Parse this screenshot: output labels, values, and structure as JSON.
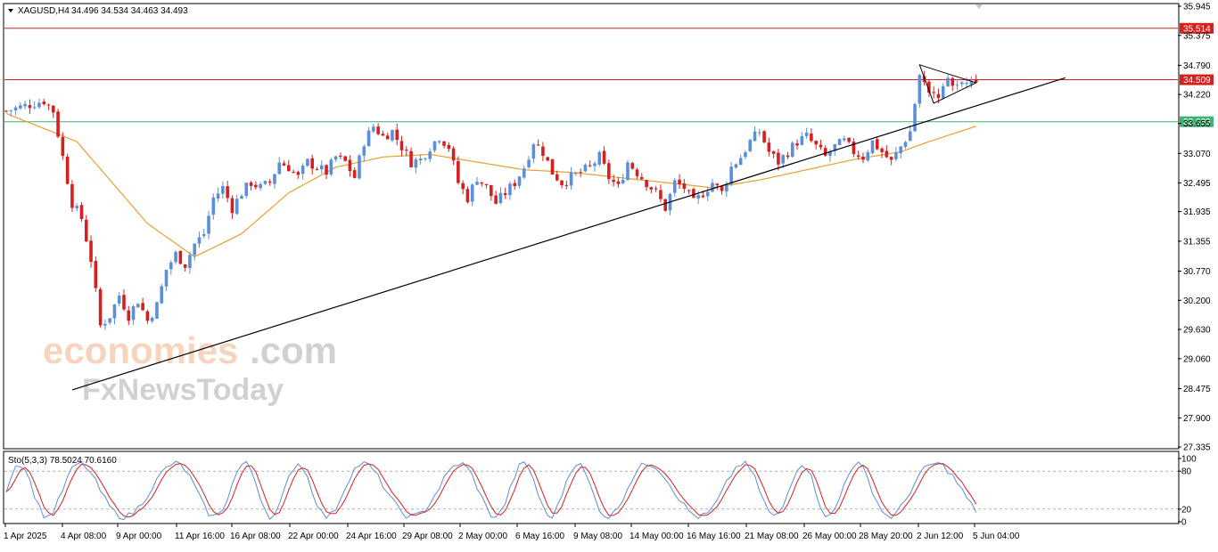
{
  "header": {
    "symbol": "XAGUSD,H4",
    "ohlc": "34.496 34.534 34.463 34.493"
  },
  "indicator": {
    "label": "Sto(5,3,3) 78.5024 70.6160",
    "levels": [
      100,
      80,
      20,
      0
    ]
  },
  "watermark": {
    "part1": "economies",
    "part2": ".com",
    "line2": "FxNewsToday"
  },
  "colors": {
    "bull": "#5b8fd8",
    "bear": "#d62020",
    "ma": "#e8a030",
    "resistance": "#d62020",
    "support_line": "#3cb371",
    "trendline": "#000000",
    "stoch_main": "#5b8fd8",
    "stoch_signal": "#d62020"
  },
  "chart_data": {
    "type": "candlestick",
    "symbol": "XAGUSD",
    "timeframe": "H4",
    "ylim": [
      27.335,
      35.945
    ],
    "y_ticks": [
      "35.945",
      "35.375",
      "34.790",
      "34.220",
      "33.655",
      "33.070",
      "32.495",
      "31.935",
      "31.355",
      "30.770",
      "30.200",
      "29.630",
      "29.060",
      "28.475",
      "27.900",
      "27.335"
    ],
    "x_ticks": [
      "1 Apr 2025",
      "4 Apr 08:00",
      "9 Apr 00:00",
      "11 Apr 16:00",
      "16 Apr 08:00",
      "22 Apr 00:00",
      "24 Apr 16:00",
      "29 Apr 08:00",
      "2 May 00:00",
      "6 May 16:00",
      "9 May 08:00",
      "14 May 00:00",
      "16 May 16:00",
      "21 May 08:00",
      "26 May 00:00",
      "28 May 20:00",
      "2 Jun 12:00",
      "5 Jun 04:00"
    ],
    "price_labels": [
      {
        "value": 35.514,
        "text": "35.514",
        "kind": "resistance"
      },
      {
        "value": 34.509,
        "text": "34.509",
        "kind": "resistance"
      },
      {
        "value": 33.689,
        "text": "33.689",
        "kind": "support"
      }
    ],
    "series": [
      {
        "name": "XAGUSD",
        "kind": "ohlc",
        "close_path": [
          [
            0,
            33.9
          ],
          [
            4,
            34.0
          ],
          [
            8,
            34.1
          ],
          [
            10,
            33.9
          ],
          [
            12,
            33.0
          ],
          [
            14,
            32.1
          ],
          [
            16,
            31.8
          ],
          [
            18,
            31.0
          ],
          [
            20,
            29.7
          ],
          [
            22,
            29.9
          ],
          [
            24,
            30.3
          ],
          [
            26,
            29.9
          ],
          [
            28,
            30.2
          ],
          [
            30,
            29.8
          ],
          [
            32,
            30.1
          ],
          [
            34,
            30.8
          ],
          [
            36,
            31.1
          ],
          [
            38,
            30.9
          ],
          [
            40,
            31.3
          ],
          [
            42,
            31.5
          ],
          [
            44,
            32.2
          ],
          [
            46,
            32.4
          ],
          [
            48,
            32.0
          ],
          [
            50,
            32.3
          ],
          [
            52,
            32.5
          ],
          [
            54,
            32.4
          ],
          [
            56,
            32.5
          ],
          [
            58,
            32.9
          ],
          [
            60,
            32.8
          ],
          [
            62,
            32.6
          ],
          [
            64,
            32.9
          ],
          [
            66,
            32.8
          ],
          [
            68,
            32.7
          ],
          [
            70,
            33.0
          ],
          [
            72,
            32.9
          ],
          [
            74,
            32.6
          ],
          [
            76,
            33.3
          ],
          [
            78,
            33.6
          ],
          [
            80,
            33.4
          ],
          [
            82,
            33.5
          ],
          [
            84,
            33.2
          ],
          [
            86,
            32.9
          ],
          [
            88,
            32.95
          ],
          [
            90,
            33.2
          ],
          [
            92,
            33.4
          ],
          [
            94,
            33.2
          ],
          [
            96,
            32.5
          ],
          [
            98,
            32.2
          ],
          [
            100,
            32.6
          ],
          [
            102,
            32.4
          ],
          [
            104,
            32.1
          ],
          [
            106,
            32.3
          ],
          [
            108,
            32.5
          ],
          [
            110,
            32.8
          ],
          [
            112,
            33.3
          ],
          [
            114,
            33.1
          ],
          [
            116,
            32.7
          ],
          [
            118,
            32.5
          ],
          [
            120,
            32.6
          ],
          [
            122,
            32.7
          ],
          [
            124,
            32.8
          ],
          [
            126,
            33.0
          ],
          [
            128,
            32.6
          ],
          [
            130,
            32.4
          ],
          [
            132,
            32.9
          ],
          [
            134,
            32.7
          ],
          [
            136,
            32.5
          ],
          [
            138,
            32.3
          ],
          [
            140,
            32.0
          ],
          [
            142,
            32.5
          ],
          [
            144,
            32.4
          ],
          [
            146,
            32.1
          ],
          [
            148,
            32.3
          ],
          [
            150,
            32.5
          ],
          [
            152,
            32.3
          ],
          [
            154,
            32.8
          ],
          [
            156,
            33.0
          ],
          [
            158,
            33.3
          ],
          [
            160,
            33.5
          ],
          [
            162,
            33.1
          ],
          [
            164,
            32.9
          ],
          [
            166,
            33.1
          ],
          [
            168,
            33.3
          ],
          [
            170,
            33.4
          ],
          [
            172,
            33.2
          ],
          [
            174,
            33.0
          ],
          [
            176,
            33.2
          ],
          [
            178,
            33.3
          ],
          [
            180,
            33.1
          ],
          [
            182,
            33.0
          ],
          [
            184,
            33.3
          ],
          [
            186,
            33.1
          ],
          [
            188,
            32.9
          ],
          [
            190,
            33.2
          ],
          [
            192,
            33.5
          ],
          [
            194,
            34.6
          ],
          [
            196,
            34.3
          ],
          [
            198,
            34.2
          ],
          [
            200,
            34.5
          ],
          [
            202,
            34.4
          ],
          [
            204,
            34.45
          ],
          [
            206,
            34.49
          ]
        ]
      },
      {
        "name": "MA",
        "kind": "line",
        "values": [
          [
            0,
            33.85
          ],
          [
            15,
            33.3
          ],
          [
            30,
            31.7
          ],
          [
            40,
            31.05
          ],
          [
            50,
            31.5
          ],
          [
            60,
            32.3
          ],
          [
            70,
            32.8
          ],
          [
            80,
            33.0
          ],
          [
            90,
            33.05
          ],
          [
            100,
            32.9
          ],
          [
            110,
            32.75
          ],
          [
            120,
            32.7
          ],
          [
            130,
            32.6
          ],
          [
            140,
            32.5
          ],
          [
            150,
            32.4
          ],
          [
            160,
            32.55
          ],
          [
            170,
            32.75
          ],
          [
            180,
            32.95
          ],
          [
            190,
            33.1
          ],
          [
            196,
            33.3
          ],
          [
            206,
            33.6
          ]
        ]
      },
      {
        "name": "Stochastic %K",
        "kind": "line"
      },
      {
        "name": "Stochastic %D",
        "kind": "line"
      }
    ],
    "annotations": [
      {
        "kind": "trendline",
        "from": [
          14,
          28.45
        ],
        "to": [
          206,
          33.85
        ]
      },
      {
        "kind": "triangle",
        "points": [
          [
            194,
            34.8
          ],
          [
            206,
            34.45
          ],
          [
            197,
            34.05
          ]
        ]
      }
    ]
  }
}
